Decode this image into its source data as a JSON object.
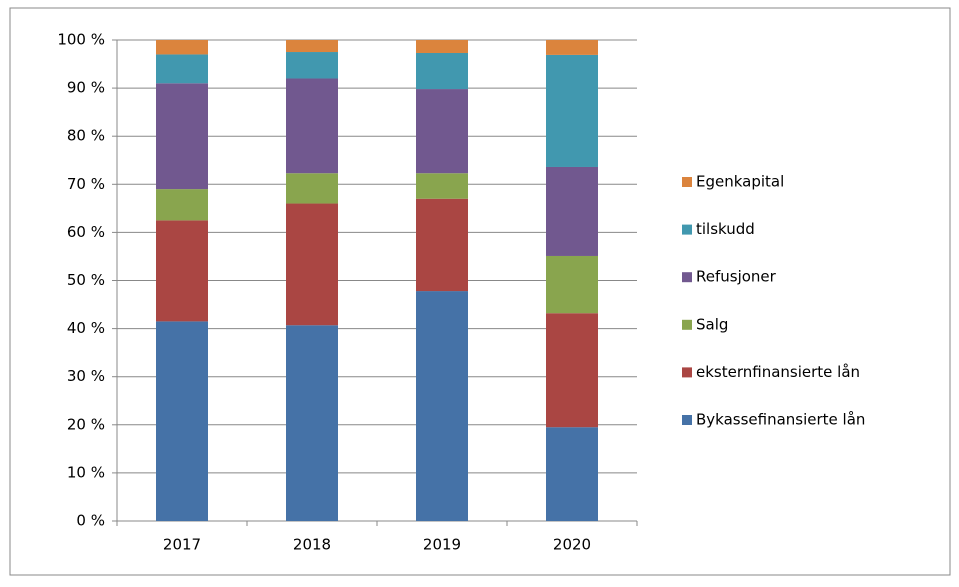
{
  "chart_data": {
    "type": "stacked_bar",
    "categories": [
      "2017",
      "2018",
      "2019",
      "2020"
    ],
    "series": [
      {
        "name": "Bykassefinansierte lån",
        "color": "#4572a7",
        "values": [
          41.5,
          40.7,
          47.8,
          19.5
        ]
      },
      {
        "name": "eksternfinansierte lån",
        "color": "#aa4643",
        "values": [
          21,
          25.3,
          19.2,
          23.7
        ]
      },
      {
        "name": "Salg",
        "color": "#89a54e",
        "values": [
          6.5,
          6.3,
          5.3,
          11.9
        ]
      },
      {
        "name": "Refusjoner",
        "color": "#71588f",
        "values": [
          22,
          19.7,
          17.5,
          18.5
        ]
      },
      {
        "name": "tilskudd",
        "color": "#4198af",
        "values": [
          6,
          5.5,
          7.5,
          23.3
        ]
      },
      {
        "name": "Egenkapital",
        "color": "#db843d",
        "values": [
          3,
          2.5,
          2.7,
          3.1
        ]
      }
    ],
    "ylim": [
      0,
      100
    ],
    "yticks": [
      {
        "value": 0,
        "label": "0 %"
      },
      {
        "value": 10,
        "label": "10 %"
      },
      {
        "value": 20,
        "label": "20 %"
      },
      {
        "value": 30,
        "label": "30 %"
      },
      {
        "value": 40,
        "label": "40 %"
      },
      {
        "value": 50,
        "label": "50 %"
      },
      {
        "value": 60,
        "label": "60 %"
      },
      {
        "value": 70,
        "label": "70 %"
      },
      {
        "value": 80,
        "label": "80 %"
      },
      {
        "value": 90,
        "label": "90 %"
      },
      {
        "value": 100,
        "label": "100 %"
      }
    ],
    "grid": true,
    "legend": "right"
  }
}
